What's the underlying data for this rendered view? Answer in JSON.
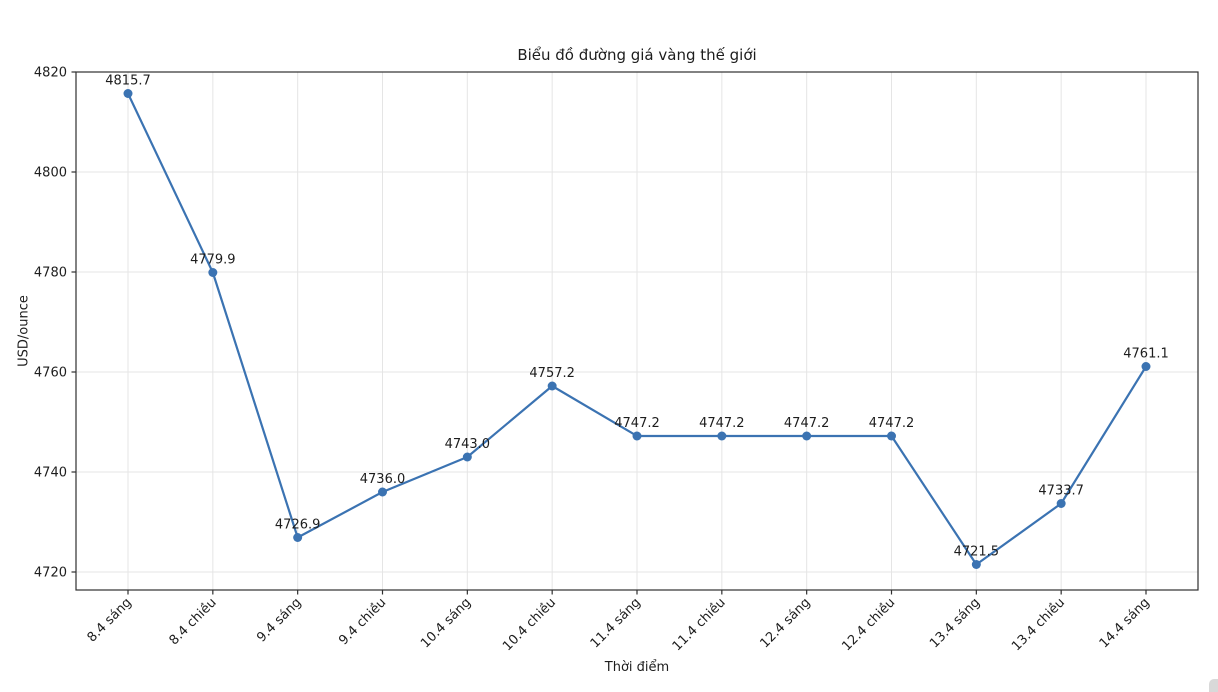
{
  "page": {
    "background": "#ffffff"
  },
  "chart_data": {
    "type": "line",
    "title": "Biểu đồ đường giá vàng thế giới",
    "xlabel": "Thời điểm",
    "ylabel": "USD/ounce",
    "categories": [
      "8.4 sáng",
      "8.4 chiều",
      "9.4 sáng",
      "9.4 chiều",
      "10.4 sáng",
      "10.4 chiều",
      "11.4 sáng",
      "11.4 chiều",
      "12.4 sáng",
      "12.4 chiều",
      "13.4 sáng",
      "13.4 chiều",
      "14.4 sáng"
    ],
    "values": [
      4815.7,
      4779.9,
      4726.9,
      4736.0,
      4743.0,
      4757.2,
      4747.2,
      4747.2,
      4747.2,
      4747.2,
      4721.5,
      4733.7,
      4761.1
    ],
    "point_labels": [
      "4815.7",
      "4779.9",
      "4726.9",
      "4736.0",
      "4743.0",
      "4757.2",
      "4747.2",
      "4747.2",
      "4747.2",
      "4747.2",
      "4721.5",
      "4733.7",
      "4761.1"
    ],
    "yticks": [
      4720,
      4740,
      4760,
      4780,
      4800,
      4820
    ],
    "ylim": [
      4716.4,
      4820.0
    ],
    "grid": true,
    "legend": "none"
  },
  "colors": {
    "accent": "#3b73b2",
    "grid": "#e5e5e5",
    "spine": "#2f2f2f",
    "text": "#1d1d1d",
    "background": "#ffffff",
    "corner_artifact": "#d9d9d9"
  }
}
